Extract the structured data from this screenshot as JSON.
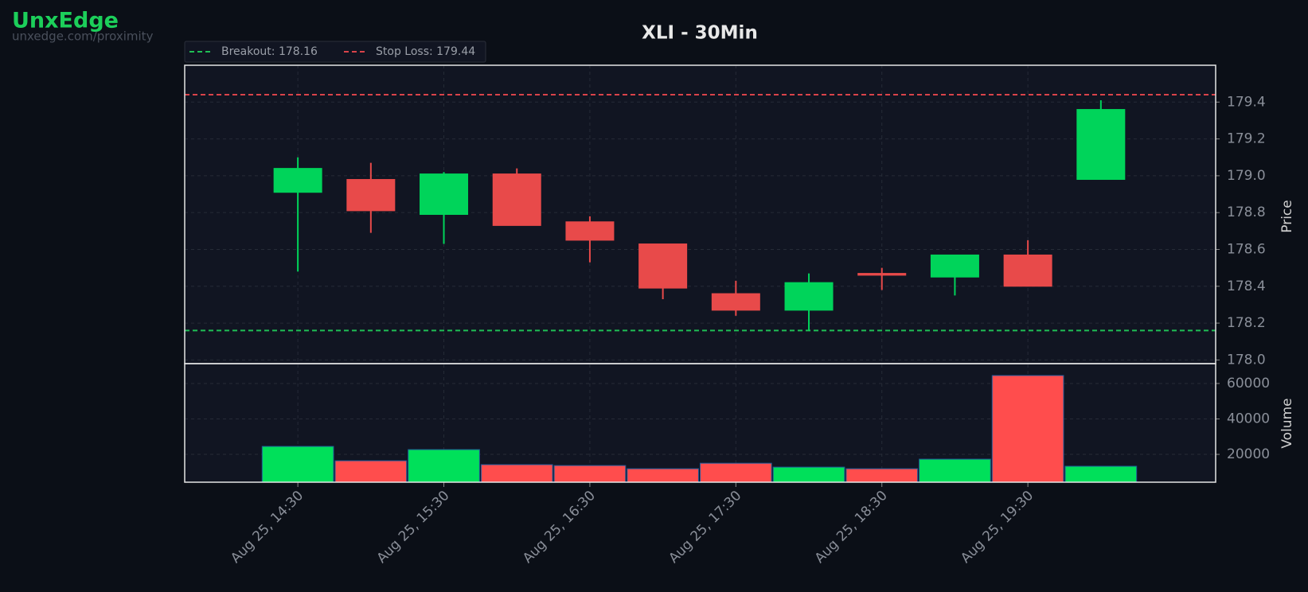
{
  "header": {
    "brand": "UnxEdge",
    "url": "unxedge.com/proximity"
  },
  "chart_data": {
    "type": "candlestick",
    "title": "XLI - 30Min",
    "categories": [
      "Aug 25, 14:30",
      null,
      "Aug 25, 15:30",
      null,
      "Aug 25, 16:30",
      null,
      "Aug 25, 17:30",
      null,
      "Aug 25, 18:30",
      null,
      "Aug 25, 19:30",
      null
    ],
    "open": [
      178.91,
      178.98,
      178.79,
      179.01,
      178.75,
      178.63,
      178.36,
      178.27,
      178.47,
      178.45,
      178.57,
      178.98
    ],
    "high": [
      179.1,
      179.07,
      179.02,
      179.04,
      178.78,
      178.63,
      178.43,
      178.47,
      178.5,
      178.57,
      178.65,
      179.41
    ],
    "low": [
      178.48,
      178.69,
      178.63,
      178.73,
      178.53,
      178.33,
      178.24,
      178.16,
      178.38,
      178.35,
      178.4,
      178.98
    ],
    "close": [
      179.04,
      178.81,
      179.01,
      178.73,
      178.65,
      178.39,
      178.27,
      178.42,
      178.46,
      178.57,
      178.4,
      179.36
    ],
    "up_color": "#00d45a",
    "down_color": "#e84a4a",
    "ylabel": "Price",
    "ylim": [
      177.98,
      179.6
    ],
    "yticks": [
      {
        "value": 178,
        "label": "178.0"
      },
      178.2,
      178.4,
      178.6,
      178.8,
      {
        "value": 179,
        "label": "179.0"
      },
      179.2,
      179.4
    ],
    "grid": true,
    "levels": [
      {
        "label": "Breakout: 178.16",
        "value": 178.16,
        "color": "#1fbf55"
      },
      {
        "label": "Stop Loss: 179.44",
        "value": 179.44,
        "color": "#d9434a"
      }
    ],
    "volume": {
      "label": "Volume",
      "values": [
        24500,
        16400,
        22700,
        14200,
        13700,
        11900,
        15000,
        12800,
        11900,
        17300,
        64500,
        13300
      ],
      "up_color": "#00e05a",
      "down_color": "#ff4d4d",
      "ylim": [
        4300,
        71200
      ],
      "yticks": [
        20000,
        40000,
        60000
      ]
    }
  }
}
